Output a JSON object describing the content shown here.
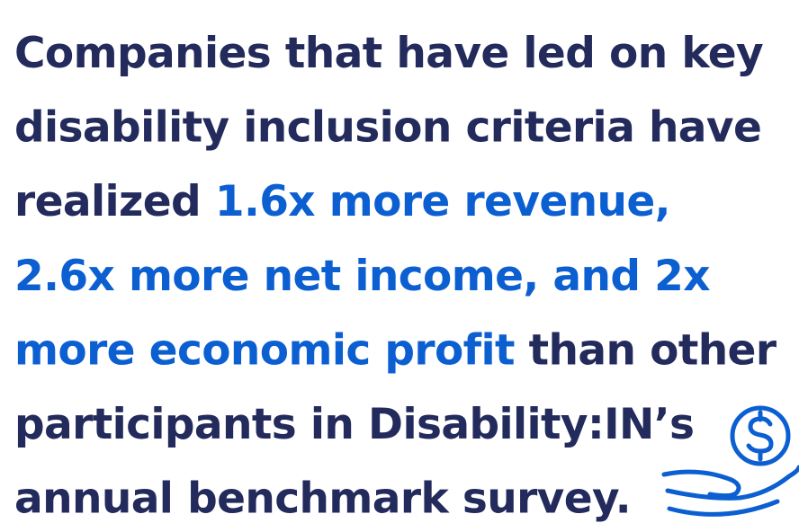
{
  "lines": [
    [
      {
        "text": "Companies that have led on key",
        "highlight": false
      }
    ],
    [
      {
        "text": "disability inclusion criteria have",
        "highlight": false
      }
    ],
    [
      {
        "text": "realized ",
        "highlight": false
      },
      {
        "text": "1.6x more revenue,",
        "highlight": true
      }
    ],
    [
      {
        "text": "2.6x more net income, and 2x",
        "highlight": true
      }
    ],
    [
      {
        "text": "more economic profit",
        "highlight": true
      },
      {
        "text": " than other",
        "highlight": false
      }
    ],
    [
      {
        "text": "participants in Disability:IN’s",
        "highlight": false
      }
    ],
    [
      {
        "text": "annual benchmark survey.",
        "highlight": false
      }
    ]
  ],
  "colors": {
    "text": "#232a5c",
    "highlight": "#0b5fd1"
  }
}
